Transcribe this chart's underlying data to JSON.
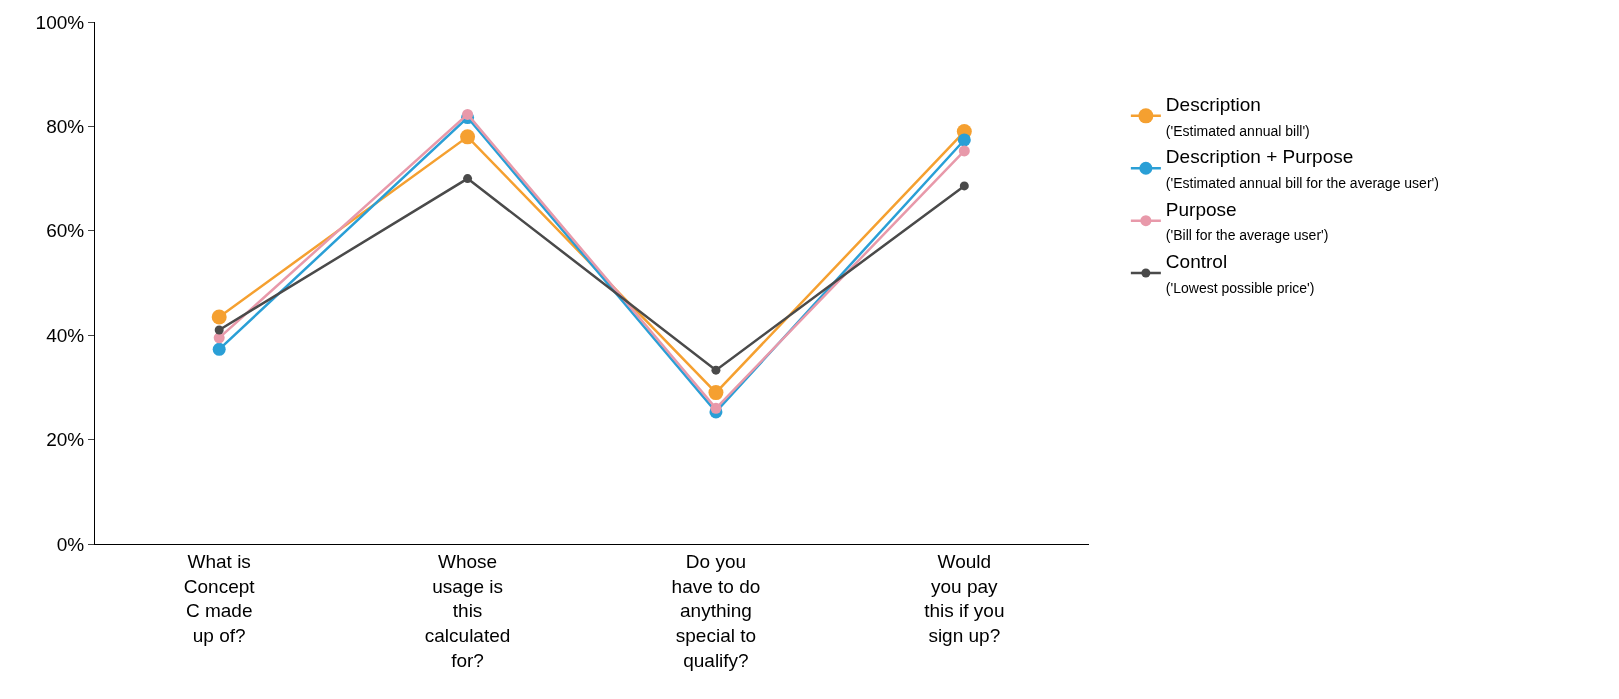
{
  "chart_data": {
    "type": "line",
    "categories": [
      "What is\nConcept\nC made\nup of?",
      "Whose\nusage is\nthis\ncalculated\nfor?",
      "Do you\nhave to do\nanything\nspecial to\nqualify?",
      "Would\nyou pay\nthis if you\nsign up?"
    ],
    "series": [
      {
        "name": "Description\n('Estimated annual bill')",
        "color": "#f5a030",
        "values": [
          43.5,
          78,
          29,
          79
        ]
      },
      {
        "name": "Description + Purpose\n('Estimated annual bill for the average user')",
        "color": "#2a9fd6",
        "values": [
          37.3,
          81.7,
          25.3,
          77.4
        ]
      },
      {
        "name": "Purpose\n('Bill for the average user')",
        "color": "#e899aa",
        "values": [
          39.5,
          82.3,
          26,
          75.3
        ]
      },
      {
        "name": "Control\n('Lowest possible price')",
        "color": "#4a4a4a",
        "values": [
          41,
          70,
          33.3,
          68.6
        ]
      }
    ],
    "ylim": [
      0,
      100
    ],
    "yticks": [
      {
        "value": 0,
        "label": "0%"
      },
      {
        "value": 20,
        "label": "20%"
      },
      {
        "value": 40,
        "label": "40%"
      },
      {
        "value": 60,
        "label": "60%"
      },
      {
        "value": 80,
        "label": "80%"
      },
      {
        "value": 100,
        "label": "100%"
      }
    ],
    "legend": "right",
    "marker": "circle",
    "line_style": "solid"
  }
}
